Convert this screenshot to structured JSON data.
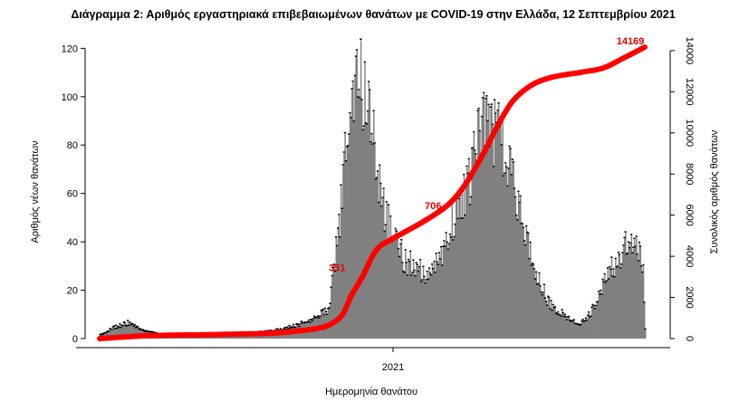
{
  "chart_data": {
    "type": "bar",
    "title": "Διάγραμμα 2: Αριθμός εργαστηριακά επιβεβαιωμένων θανάτων με COVID-19 στην Ελλάδα, 12 Σεπτεμβρίου 2021",
    "xlabel": "Ημερομηνία θανάτου",
    "ylabel": "Αριθμός νέων θανάτων",
    "y2label": "Συνολικός αριθμός θανάτων",
    "ylim": [
      0,
      125
    ],
    "y2lim": [
      0,
      14700
    ],
    "yticks": [
      "0",
      "20",
      "40",
      "60",
      "80",
      "100",
      "120"
    ],
    "y2ticks": [
      "0",
      "2000",
      "4000",
      "6000",
      "8000",
      "10000",
      "12000",
      "14000"
    ],
    "xtick_labels": [
      "2021"
    ],
    "grid": false,
    "legend": "none",
    "colors": {
      "bars": "#808080",
      "cumulative": "#ff0000",
      "annotation": "#e00000"
    },
    "daily_series": {
      "name": "",
      "x_start": "2020-03-11",
      "x_end": "2021-09-12",
      "anchors": [
        [
          "2020-03-11",
          1
        ],
        [
          "2020-03-25",
          4
        ],
        [
          "2020-04-08",
          6
        ],
        [
          "2020-04-22",
          3
        ],
        [
          "2020-05-15",
          1
        ],
        [
          "2020-06-15",
          1
        ],
        [
          "2020-07-15",
          1
        ],
        [
          "2020-08-15",
          2
        ],
        [
          "2020-09-05",
          3
        ],
        [
          "2020-09-25",
          5
        ],
        [
          "2020-10-15",
          8
        ],
        [
          "2020-10-28",
          12
        ],
        [
          "2020-11-02",
          30
        ],
        [
          "2020-11-07",
          45
        ],
        [
          "2020-11-12",
          70
        ],
        [
          "2020-11-17",
          95
        ],
        [
          "2020-11-22",
          108
        ],
        [
          "2020-11-27",
          110
        ],
        [
          "2020-12-02",
          102
        ],
        [
          "2020-12-07",
          90
        ],
        [
          "2020-12-12",
          82
        ],
        [
          "2020-12-17",
          68
        ],
        [
          "2020-12-22",
          55
        ],
        [
          "2020-12-27",
          47
        ],
        [
          "2021-01-01",
          42
        ],
        [
          "2021-01-06",
          37
        ],
        [
          "2021-01-12",
          32
        ],
        [
          "2021-01-20",
          30
        ],
        [
          "2021-01-28",
          28
        ],
        [
          "2021-02-05",
          27
        ],
        [
          "2021-02-12",
          29
        ],
        [
          "2021-02-20",
          37
        ],
        [
          "2021-02-27",
          46
        ],
        [
          "2021-03-05",
          52
        ],
        [
          "2021-03-12",
          58
        ],
        [
          "2021-03-20",
          67
        ],
        [
          "2021-03-27",
          80
        ],
        [
          "2021-04-03",
          88
        ],
        [
          "2021-04-10",
          87
        ],
        [
          "2021-04-17",
          84
        ],
        [
          "2021-04-24",
          76
        ],
        [
          "2021-05-01",
          66
        ],
        [
          "2021-05-08",
          53
        ],
        [
          "2021-05-15",
          40
        ],
        [
          "2021-05-22",
          30
        ],
        [
          "2021-05-29",
          22
        ],
        [
          "2021-06-05",
          16
        ],
        [
          "2021-06-12",
          12
        ],
        [
          "2021-06-19",
          10
        ],
        [
          "2021-06-26",
          8
        ],
        [
          "2021-07-03",
          6
        ],
        [
          "2021-07-10",
          6
        ],
        [
          "2021-07-17",
          9
        ],
        [
          "2021-07-24",
          14
        ],
        [
          "2021-07-31",
          22
        ],
        [
          "2021-08-07",
          28
        ],
        [
          "2021-08-14",
          31
        ],
        [
          "2021-08-21",
          36
        ],
        [
          "2021-08-28",
          40
        ],
        [
          "2021-09-04",
          38
        ],
        [
          "2021-09-10",
          30
        ],
        [
          "2021-09-12",
          4
        ]
      ]
    },
    "cumulative_series": {
      "name": "",
      "points": [
        [
          "2020-03-11",
          1
        ],
        [
          "2020-05-01",
          140
        ],
        [
          "2020-07-01",
          192
        ],
        [
          "2020-09-01",
          266
        ],
        [
          "2020-10-01",
          390
        ],
        [
          "2020-10-25",
          590
        ],
        [
          "2020-11-10",
          1100
        ],
        [
          "2020-11-20",
          2100
        ],
        [
          "2020-12-01",
          3000
        ],
        [
          "2020-12-15",
          4300
        ],
        [
          "2020-12-31",
          4838
        ],
        [
          "2021-01-31",
          5670
        ],
        [
          "2021-02-25",
          6480
        ],
        [
          "2021-03-15",
          7500
        ],
        [
          "2021-04-01",
          8900
        ],
        [
          "2021-04-15",
          10200
        ],
        [
          "2021-05-01",
          11500
        ],
        [
          "2021-05-20",
          12300
        ],
        [
          "2021-06-10",
          12700
        ],
        [
          "2021-07-10",
          12950
        ],
        [
          "2021-08-01",
          13150
        ],
        [
          "2021-08-20",
          13600
        ],
        [
          "2021-09-12",
          14169
        ]
      ]
    },
    "annotations": [
      {
        "text": "14169",
        "x": "2021-09-12",
        "y": 14169
      },
      {
        "text": "706",
        "x": "2021-02-25",
        "y": 6480
      },
      {
        "text": "351",
        "x": "2020-11-22",
        "y": 3500
      }
    ]
  }
}
